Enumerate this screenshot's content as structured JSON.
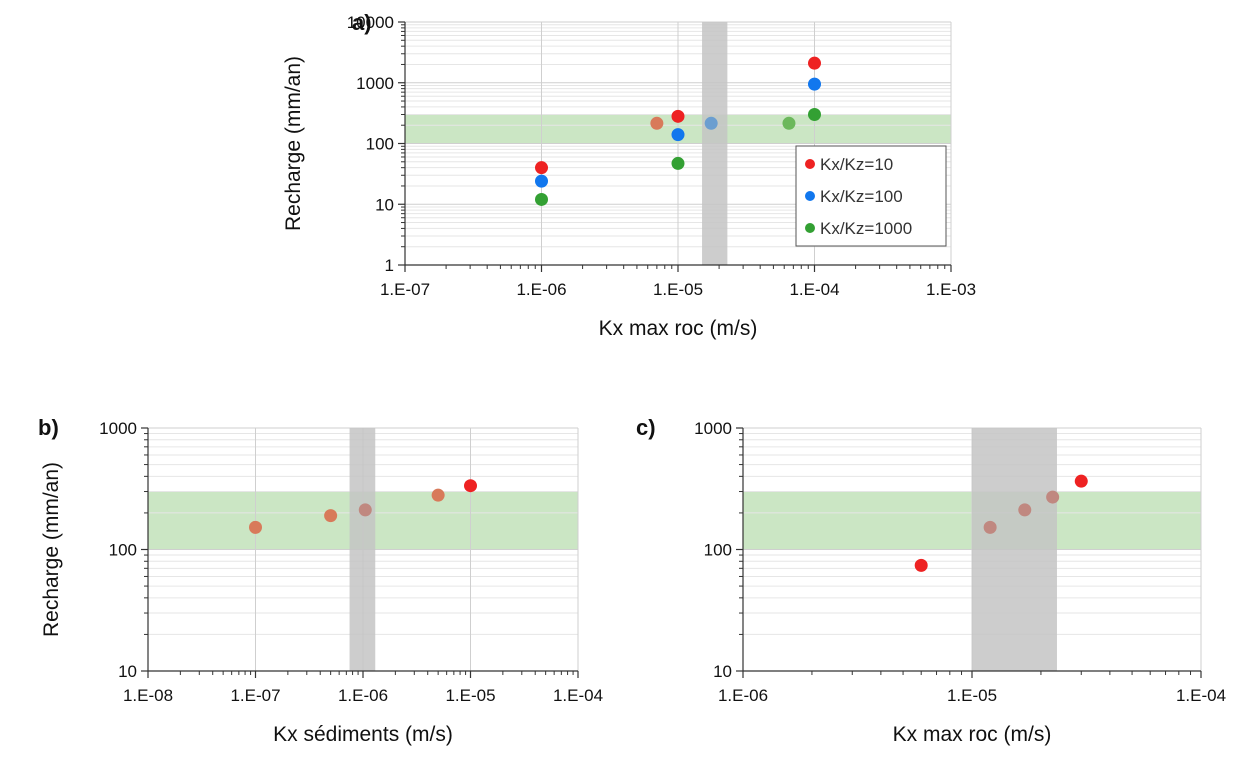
{
  "colors": {
    "red": "#ee2222",
    "blue": "#1177ee",
    "green": "#33a033",
    "band_fill": "#b9ddb0",
    "vband_fill": "#c4c4c4",
    "grid_major": "#cfcfcf",
    "grid_minor": "#e6e6e6",
    "axis": "#333333"
  },
  "chart_data": [
    {
      "panel": "a)",
      "type": "scatter",
      "xscale": "log",
      "yscale": "log",
      "xlim": [
        1e-07,
        0.001
      ],
      "ylim": [
        1,
        10000
      ],
      "xticks": [
        "1.E-07",
        "1.E-06",
        "1.E-05",
        "1.E-04",
        "1.E-03"
      ],
      "yticks": [
        "1",
        "10",
        "100",
        "1000",
        "10000"
      ],
      "xlabel": "Kx max roc (m/s)",
      "ylabel": "Recharge (mm/an)",
      "grid": true,
      "legend": "inside-right",
      "hband_y": [
        100,
        300
      ],
      "vband_x": [
        1.5e-05,
        2.3e-05
      ],
      "series": [
        {
          "name": "Kx/Kz=10",
          "color": "#ee2222",
          "points": [
            [
              1e-06,
              40
            ],
            [
              1e-05,
              280
            ],
            [
              0.0001,
              2100
            ]
          ]
        },
        {
          "name": "Kx/Kz=100",
          "color": "#1177ee",
          "points": [
            [
              1e-06,
              24
            ],
            [
              1e-05,
              140
            ],
            [
              0.0001,
              950
            ]
          ]
        },
        {
          "name": "Kx/Kz=1000",
          "color": "#33a033",
          "points": [
            [
              1e-06,
              12
            ],
            [
              1e-05,
              47
            ],
            [
              0.0001,
              300
            ]
          ]
        }
      ],
      "extra_points": [
        {
          "x": 7e-06,
          "y": 215,
          "color": "#d87a5a"
        },
        {
          "x": 1.75e-05,
          "y": 215,
          "color": "#6b9ed0"
        },
        {
          "x": 6.5e-05,
          "y": 215,
          "color": "#6cb85c"
        }
      ]
    },
    {
      "panel": "b)",
      "type": "scatter",
      "xscale": "log",
      "yscale": "log",
      "xlim": [
        1e-08,
        0.0001
      ],
      "ylim": [
        10,
        1000
      ],
      "xticks": [
        "1.E-08",
        "1.E-07",
        "1.E-06",
        "1.E-05",
        "1.E-04"
      ],
      "yticks": [
        "10",
        "100",
        "1000"
      ],
      "xlabel": "Kx sédiments (m/s)",
      "ylabel": "Recharge (mm/an)",
      "grid": true,
      "hband_y": [
        100,
        300
      ],
      "vband_x": [
        7.5e-07,
        1.3e-06
      ],
      "points": [
        {
          "x": 1e-07,
          "y": 152,
          "color": "#d87a5a"
        },
        {
          "x": 5e-07,
          "y": 190,
          "color": "#d87a5a"
        },
        {
          "x": 1.05e-06,
          "y": 212,
          "color": "#c08880"
        },
        {
          "x": 5e-06,
          "y": 280,
          "color": "#d87a5a"
        },
        {
          "x": 1e-05,
          "y": 335,
          "color": "#ee2222"
        }
      ]
    },
    {
      "panel": "c)",
      "type": "scatter",
      "xscale": "log",
      "yscale": "log",
      "xlim": [
        1e-06,
        0.0001
      ],
      "ylim": [
        10,
        1000
      ],
      "xticks": [
        "1.E-06",
        "1.E-05",
        "1.E-04"
      ],
      "yticks": [
        "10",
        "100",
        "1000"
      ],
      "xlabel": "Kx max roc (m/s)",
      "ylabel": "",
      "grid": true,
      "hband_y": [
        100,
        300
      ],
      "vband_x": [
        1e-05,
        2.35e-05
      ],
      "points": [
        {
          "x": 6e-06,
          "y": 74,
          "color": "#ee2222"
        },
        {
          "x": 1.2e-05,
          "y": 152,
          "color": "#c08880"
        },
        {
          "x": 1.7e-05,
          "y": 212,
          "color": "#c08880"
        },
        {
          "x": 2.25e-05,
          "y": 270,
          "color": "#c08880"
        },
        {
          "x": 3e-05,
          "y": 365,
          "color": "#ee2222"
        }
      ]
    }
  ]
}
